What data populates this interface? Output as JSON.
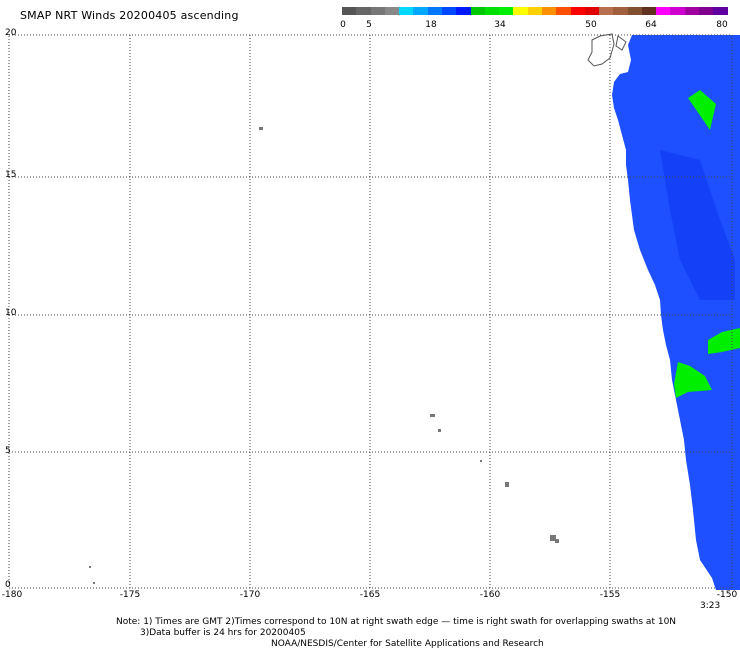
{
  "title": "SMAP NRT Winds 20200405 ascending",
  "colorbar": {
    "labels": [
      "0",
      "5",
      "18",
      "34",
      "50",
      "64",
      "80"
    ],
    "colors": [
      "#555555",
      "#666666",
      "#777777",
      "#888888",
      "#00d8ff",
      "#00a8ff",
      "#0078ff",
      "#0048ff",
      "#0018ff",
      "#00c800",
      "#00e000",
      "#00f000",
      "#ffff00",
      "#ffd000",
      "#ff9000",
      "#ff5000",
      "#ff0000",
      "#e00000",
      "#b87050",
      "#a06040",
      "#805030",
      "#603020",
      "#ff00ff",
      "#d000d0",
      "#a000a0",
      "#800090",
      "#6000a0"
    ]
  },
  "y_axis": {
    "ticks": [
      "20",
      "15",
      "10",
      "5",
      "0"
    ]
  },
  "x_axis": {
    "ticks": [
      "-180",
      "-175",
      "-170",
      "-165",
      "-160",
      "-155",
      "-150"
    ]
  },
  "time_label": "3:23",
  "notes": {
    "line1": "Note: 1) Times are GMT 2)Times correspond to 10N at right swath edge — time is right swath for overlapping swaths at 10N",
    "line2": "3)Data buffer is 24 hrs for 20200405",
    "line3": "NOAA/NESDIS/Center for Satellite Applications and Research"
  },
  "colors": {
    "swath_blue": "#1e50ff",
    "swath_green": "#00ee00",
    "land": "#777777",
    "grid": "#444444"
  }
}
